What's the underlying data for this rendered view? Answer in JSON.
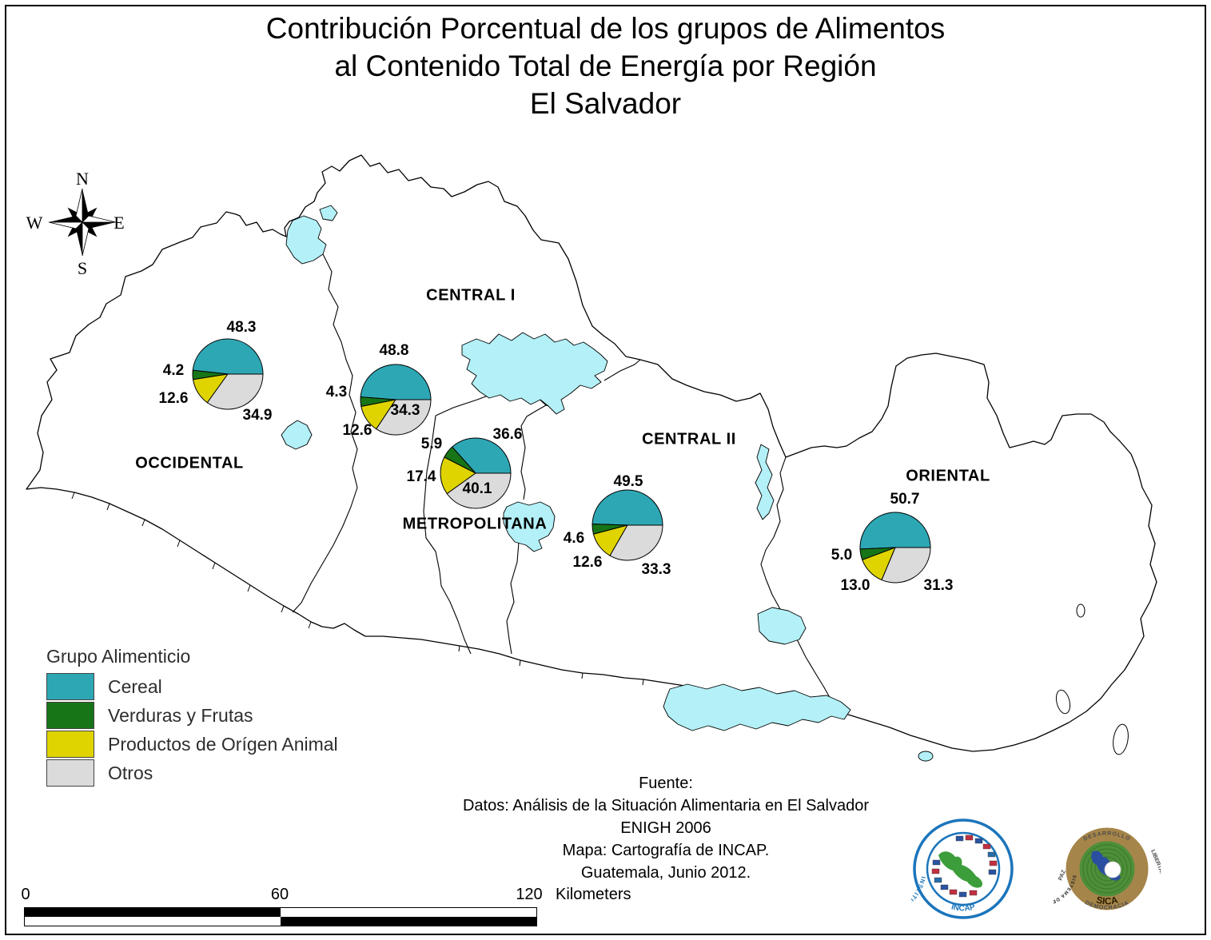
{
  "title": {
    "lines": [
      "Contribución Porcentual de los grupos de Alimentos",
      "al Contenido Total de Energía por Región",
      "El Salvador"
    ]
  },
  "compass": {
    "n": "N",
    "e": "E",
    "s": "S",
    "w": "W"
  },
  "legend": {
    "title": "Grupo Alimenticio",
    "items": [
      {
        "label": "Cereal",
        "color": "#2EA7B4"
      },
      {
        "label": "Verduras y Frutas",
        "color": "#177517"
      },
      {
        "label": "Productos de Orígen Animal",
        "color": "#DFD400"
      },
      {
        "label": "Otros",
        "color": "#DBDBDB"
      }
    ]
  },
  "map": {
    "water_color": "#B3F0F7"
  },
  "chart_data": [
    {
      "type": "pie",
      "region": "OCCIDENTAL",
      "slices": [
        {
          "group": "Cereal",
          "value": 48.3,
          "label": "48.3"
        },
        {
          "group": "Verduras y Frutas",
          "value": 4.2,
          "label": "4.2"
        },
        {
          "group": "Productos de Orígen Animal",
          "value": 12.6,
          "label": "12.6"
        },
        {
          "group": "Otros",
          "value": 34.9,
          "label": "34.9"
        }
      ]
    },
    {
      "type": "pie",
      "region": "CENTRAL I",
      "slices": [
        {
          "group": "Cereal",
          "value": 48.8,
          "label": "48.8"
        },
        {
          "group": "Verduras y Frutas",
          "value": 4.3,
          "label": "4.3"
        },
        {
          "group": "Productos de Orígen Animal",
          "value": 12.6,
          "label": "12.6"
        },
        {
          "group": "Otros",
          "value": 34.3,
          "label": "34.3"
        }
      ]
    },
    {
      "type": "pie",
      "region": "METROPOLITANA",
      "slices": [
        {
          "group": "Cereal",
          "value": 36.6,
          "label": "36.6"
        },
        {
          "group": "Verduras y Frutas",
          "value": 5.9,
          "label": "5.9"
        },
        {
          "group": "Productos de Orígen Animal",
          "value": 17.4,
          "label": "17.4"
        },
        {
          "group": "Otros",
          "value": 40.1,
          "label": "40.1"
        }
      ]
    },
    {
      "type": "pie",
      "region": "CENTRAL II",
      "slices": [
        {
          "group": "Cereal",
          "value": 49.5,
          "label": "49.5"
        },
        {
          "group": "Verduras y Frutas",
          "value": 4.6,
          "label": "4.6"
        },
        {
          "group": "Productos de Orígen Animal",
          "value": 12.6,
          "label": "12.6"
        },
        {
          "group": "Otros",
          "value": 33.3,
          "label": "33.3"
        }
      ]
    },
    {
      "type": "pie",
      "region": "ORIENTAL",
      "slices": [
        {
          "group": "Cereal",
          "value": 50.7,
          "label": "50.7"
        },
        {
          "group": "Verduras y Frutas",
          "value": 5.0,
          "label": "5.0"
        },
        {
          "group": "Productos de Orígen Animal",
          "value": 13.0,
          "label": "13.0"
        },
        {
          "group": "Otros",
          "value": 31.3,
          "label": "31.3"
        }
      ]
    }
  ],
  "source": {
    "lines": [
      "Fuente:",
      "Datos: Análisis de la Situación Alimentaria en El Salvador",
      "ENIGH 2006",
      "Mapa: Cartografía de INCAP.",
      "Guatemala, Junio 2012."
    ]
  },
  "scalebar": {
    "ticks": [
      "0",
      "60",
      "120"
    ],
    "unit": "Kilometers"
  },
  "logos": {
    "incap": {
      "ring_text": "INSTITUTO DE NUTRICION DE CENTRO AMERICA Y PANAMA",
      "name": "INCAP"
    },
    "sica": {
      "ring_text": "SISTEMA DE LA INTEGRACION CENTROAMERICANA",
      "name": "SICA",
      "motto_top": "DESARROLLO",
      "motto_right": "LIBERTAD",
      "motto_bottom": "DEMOCRACIA",
      "motto_left": "PAZ"
    }
  }
}
